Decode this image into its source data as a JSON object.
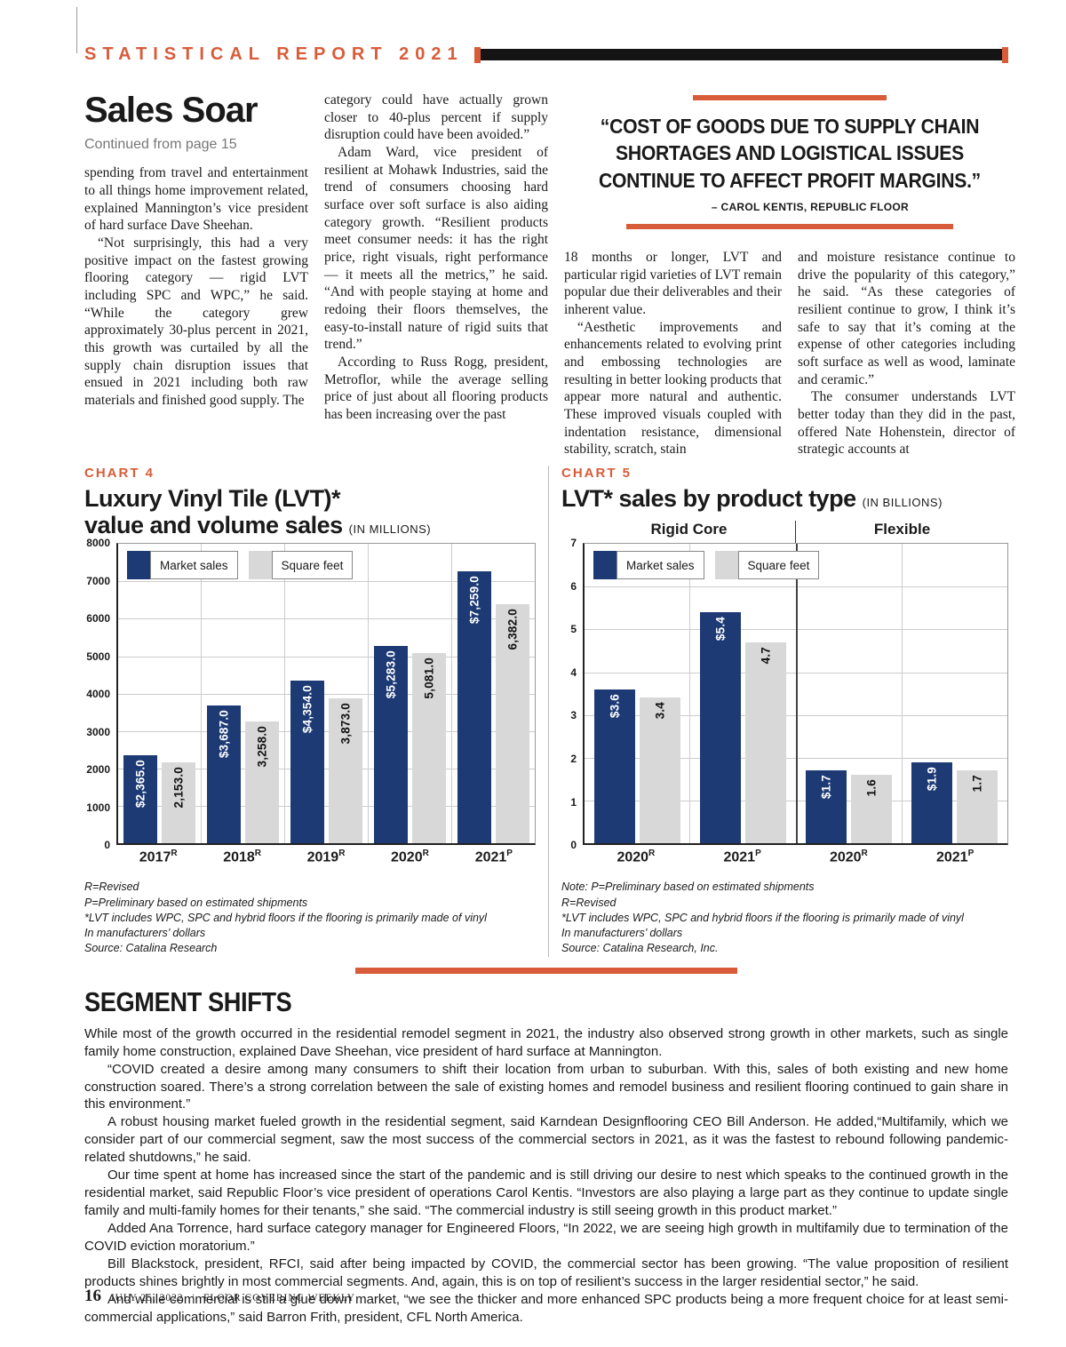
{
  "colors": {
    "accent": "#d85c3a",
    "navy": "#1d3a75",
    "bar_gray": "#d8d8d8"
  },
  "header": {
    "title": "STATISTICAL REPORT 2021"
  },
  "article": {
    "headline": "Sales Soar",
    "continued": "Continued from page 15",
    "columns": [
      [
        "spending from travel and entertainment to all things home improvement related, explained Mannington’s vice president of hard surface Dave Sheehan.",
        "“Not surprisingly, this had a very positive impact on the fastest growing flooring category — rigid LVT including SPC and WPC,” he said. “While the category grew approximately 30-plus percent in 2021, this growth was curtailed by all the supply chain disruption issues that ensued in 2021 including both raw materials and finished good supply. The"
      ],
      [
        "category could have actually grown closer to 40-plus percent if supply disruption could have been avoided.”",
        "Adam Ward, vice president of resilient at Mohawk Industries, said the trend of consumers choosing hard surface over soft surface is also aiding category growth. “Resilient products meet consumer needs: it has the right price, right visuals, right performance — it meets all the metrics,” he said. “And with people staying at home and redoing their floors themselves, the easy-to-install nature of rigid suits that trend.”",
        "According to Russ Rogg, president, Metroflor, while the average selling price of just about all flooring products has been increasing over the past"
      ],
      [
        "18 months or longer, LVT and particular rigid varieties of LVT remain popular due their deliverables and their inherent value.",
        "“Aesthetic improvements and enhancements related to evolving print and embossing technologies are resulting in better looking products that appear more natural and authentic. These improved visuals coupled with indentation resistance, dimensional stability, scratch, stain"
      ],
      [
        "and moisture resistance continue to drive the popularity of this category,” he said. “As these categories of resilient continue to grow, I think it’s safe to say that it’s coming at the expense of other categories including soft surface as well as wood, laminate and ceramic.”",
        "The consumer understands LVT better today than they did in the past, offered Nate Hohenstein, director of strategic accounts at"
      ]
    ]
  },
  "pull_quote": {
    "text": "“COST OF GOODS DUE TO SUPPLY CHAIN SHORTAGES AND LOGISTICAL ISSUES CONTINUE TO AFFECT PROFIT MARGINS.”",
    "attribution": "– CAROL KENTIS, REPUBLIC FLOOR"
  },
  "chart_data": [
    {
      "type": "bar",
      "chart_label": "CHART 4",
      "title": "Luxury Vinyl Tile (LVT)* value and volume sales",
      "title_lines": [
        "Luxury Vinyl Tile (LVT)*",
        "value and volume sales"
      ],
      "units": "(IN MILLIONS)",
      "categories": [
        {
          "label": "2017",
          "sup": "R"
        },
        {
          "label": "2018",
          "sup": "R"
        },
        {
          "label": "2019",
          "sup": "R"
        },
        {
          "label": "2020",
          "sup": "R"
        },
        {
          "label": "2021",
          "sup": "P"
        }
      ],
      "series": [
        {
          "name": "Market sales",
          "color": "#1d3a75",
          "values": [
            2365.0,
            3687.0,
            4354.0,
            5283.0,
            7259.0
          ],
          "labels": [
            "$2,365.0",
            "$3,687.0",
            "$4,354.0",
            "$5,283.0",
            "$7,259.0"
          ]
        },
        {
          "name": "Square feet",
          "color": "#d8d8d8",
          "values": [
            2153.0,
            3258.0,
            3873.0,
            5081.0,
            6382.0
          ],
          "labels": [
            "2,153.0",
            "3,258.0",
            "3,873.0",
            "5,081.0",
            "6,382.0"
          ]
        }
      ],
      "ylim": [
        0,
        8000
      ],
      "ytick_step": 1000,
      "grid": true,
      "legend_position": "top-left",
      "footnotes": [
        "R=Revised",
        "P=Preliminary based on estimated shipments",
        "*LVT includes WPC, SPC and hybrid floors if the flooring is primarily made of vinyl",
        "In manufacturers’ dollars",
        "Source: Catalina Research"
      ]
    },
    {
      "type": "bar",
      "chart_label": "CHART 5",
      "title": "LVT* sales by product type",
      "units": "(IN BILLIONS)",
      "group_headers": [
        "Rigid Core",
        "Flexible"
      ],
      "categories": [
        {
          "label": "2020",
          "sup": "R"
        },
        {
          "label": "2021",
          "sup": "P"
        },
        {
          "label": "2020",
          "sup": "R"
        },
        {
          "label": "2021",
          "sup": "P"
        }
      ],
      "series": [
        {
          "name": "Market sales",
          "color": "#1d3a75",
          "values": [
            3.6,
            5.4,
            1.7,
            1.9
          ],
          "labels": [
            "$3.6",
            "$5.4",
            "$1.7",
            "$1.9"
          ]
        },
        {
          "name": "Square feet",
          "color": "#d8d8d8",
          "values": [
            3.4,
            4.7,
            1.6,
            1.7
          ],
          "labels": [
            "3.4",
            "4.7",
            "1.6",
            "1.7"
          ]
        }
      ],
      "ylim": [
        0,
        7
      ],
      "ytick_step": 1,
      "grid": true,
      "legend_position": "top-left",
      "footnotes": [
        "Note: P=Preliminary based on estimated shipments",
        "R=Revised",
        "*LVT includes WPC, SPC and hybrid floors if the flooring is primarily made of vinyl",
        "In manufacturers’ dollars",
        "Source: Catalina Research, Inc."
      ]
    }
  ],
  "segment": {
    "heading": "SEGMENT SHIFTS",
    "paragraphs": [
      "While most of the growth occurred in the residential remodel segment in 2021, the industry also observed strong growth in other markets, such as single family home construction, explained Dave Sheehan, vice president of hard surface at Mannington.",
      "“COVID created a desire among many consumers to shift their location from urban to suburban. With this, sales of both existing and new home construction soared. There’s a strong correlation between the sale of existing homes and remodel business and resilient flooring continued to gain share in this environment.”",
      "A robust housing market fueled growth in the residential segment, said Karndean Designflooring CEO Bill Anderson. He added,“Multifamily, which we consider part of our commercial segment, saw the most success of the commercial sectors in 2021, as it was the fastest to rebound following pandemic-related shutdowns,” he said.",
      "Our time spent at home has increased since the start of the pandemic and is still driving our desire to nest which speaks to the continued growth in the residential market, said Republic Floor’s vice president of operations Carol Kentis. “Investors are also playing a large part as they continue to update single family and multi-family homes for their tenants,” she said. “The commercial industry is still seeing growth in this product market.”",
      "Added Ana Torrence, hard surface category manager for Engineered Floors, “In 2022, we are seeing high growth in multifamily due to termination of the COVID eviction moratorium.”",
      "Bill Blackstock, president, RFCI, said after being impacted by COVID, the commercial sector has been growing. “The value proposition of resilient products shines brightly in most commercial segments. And, again, this is on top of resilient’s success in the larger residential sector,” he said.",
      "And while commercial is still a glue down market, “we see the thicker and more enhanced SPC products being a more frequent choice for at least semi-commercial applications,” said Barron Frith, president, CFL North America."
    ]
  },
  "footer": {
    "page_number": "16",
    "date": "JULY 25, 2022",
    "separator": "|",
    "publication": "FLOOR COVERING WEEKLY"
  }
}
